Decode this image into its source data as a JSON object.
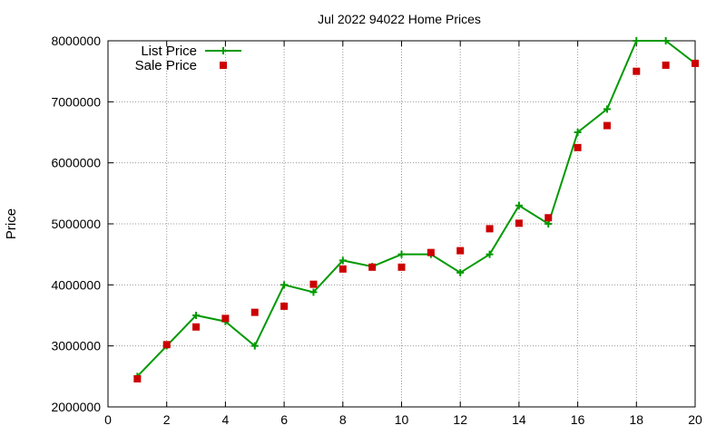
{
  "chart_data": {
    "type": "line",
    "title": "Jul 2022 94022 Home Prices",
    "xlabel": "",
    "ylabel": "Price",
    "xlim": [
      0,
      20
    ],
    "ylim": [
      2000000,
      8000000
    ],
    "x_ticks": [
      0,
      2,
      4,
      6,
      8,
      10,
      12,
      14,
      16,
      18,
      20
    ],
    "y_ticks": [
      2000000,
      3000000,
      4000000,
      5000000,
      6000000,
      7000000,
      8000000
    ],
    "grid": true,
    "legend_position": "top-left",
    "series": [
      {
        "name": "List Price",
        "style": "line+cross",
        "color": "#009900",
        "x": [
          1,
          2,
          3,
          4,
          5,
          6,
          7,
          8,
          9,
          10,
          11,
          12,
          13,
          14,
          15,
          16,
          17,
          18,
          19,
          20
        ],
        "y": [
          2500000,
          3000000,
          3500000,
          3400000,
          3000000,
          4000000,
          3880000,
          4400000,
          4300000,
          4500000,
          4500000,
          4200000,
          4500000,
          5300000,
          5000000,
          6500000,
          6880000,
          8000000,
          8000000,
          7630000
        ]
      },
      {
        "name": "Sale Price",
        "style": "square",
        "color": "#cc0000",
        "x": [
          1,
          2,
          3,
          4,
          5,
          6,
          7,
          8,
          9,
          10,
          11,
          12,
          13,
          14,
          15,
          16,
          17,
          18,
          19,
          20
        ],
        "y": [
          2460000,
          3020000,
          3310000,
          3450000,
          3550000,
          3650000,
          4010000,
          4260000,
          4290000,
          4290000,
          4530000,
          4560000,
          4920000,
          5010000,
          5100000,
          6250000,
          6610000,
          7500000,
          7600000,
          7630000
        ]
      }
    ]
  }
}
